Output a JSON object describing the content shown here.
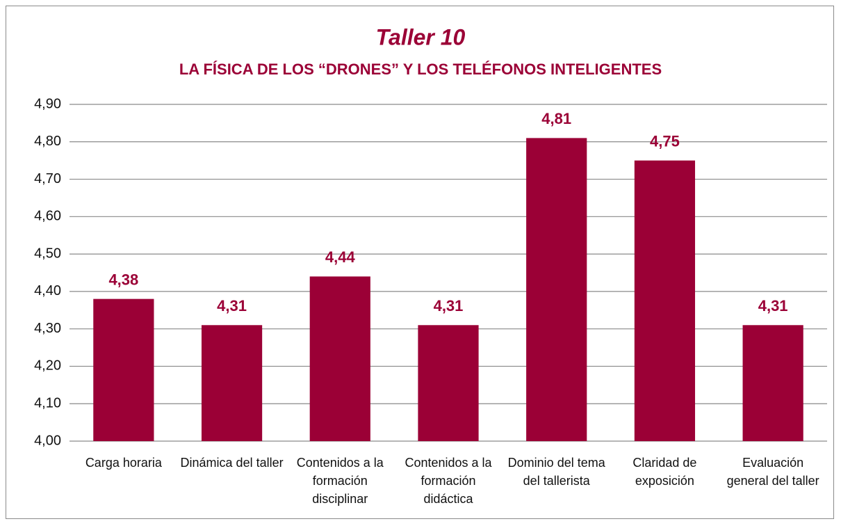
{
  "chart_data": {
    "type": "bar",
    "title": "Taller 10",
    "subtitle": "LA FÍSICA DE LOS “DRONES” Y LOS TELÉFONOS INTELIGENTES",
    "categories": [
      "Carga horaria",
      "Dinámica del taller",
      "Contenidos a la formación disciplinar",
      "Contenidos a la formación didáctica",
      "Dominio del tema del tallerista",
      "Claridad de exposición",
      "Evaluación general del taller"
    ],
    "values": [
      4.38,
      4.31,
      4.44,
      4.31,
      4.81,
      4.75,
      4.31
    ],
    "value_labels": [
      "4,38",
      "4,31",
      "4,44",
      "4,31",
      "4,81",
      "4,75",
      "4,31"
    ],
    "color": "#9b0036",
    "ylim": [
      4.0,
      4.9
    ],
    "yticks": [
      {
        "value": 4.0,
        "label": "4,00"
      },
      {
        "value": 4.1,
        "label": "4,10"
      },
      {
        "value": 4.2,
        "label": "4,20"
      },
      {
        "value": 4.3,
        "label": "4,30"
      },
      {
        "value": 4.4,
        "label": "4,40"
      },
      {
        "value": 4.5,
        "label": "4,50"
      },
      {
        "value": 4.6,
        "label": "4,60"
      },
      {
        "value": 4.7,
        "label": "4,70"
      },
      {
        "value": 4.8,
        "label": "4,80"
      },
      {
        "value": 4.9,
        "label": "4,90"
      }
    ],
    "grid": true
  }
}
